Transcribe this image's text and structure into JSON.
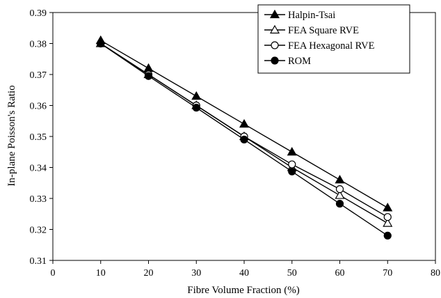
{
  "chart_data": {
    "type": "line",
    "xlabel": "Fibre Volume Fraction (%)",
    "ylabel": "In-plane Poisson's Ratio",
    "xlim": [
      0,
      80
    ],
    "ylim": [
      0.31,
      0.39
    ],
    "xticks": [
      0,
      10,
      20,
      30,
      40,
      50,
      60,
      70,
      80
    ],
    "yticks": [
      0.31,
      0.32,
      0.33,
      0.34,
      0.35,
      0.36,
      0.37,
      0.38,
      0.39
    ],
    "grid": false,
    "legend_position": "top-right",
    "x": [
      10,
      20,
      30,
      40,
      50,
      60,
      70
    ],
    "series": [
      {
        "name": "Halpin-Tsai",
        "marker": "filled-triangle",
        "values": [
          0.381,
          0.372,
          0.363,
          0.354,
          0.345,
          0.336,
          0.327
        ]
      },
      {
        "name": "FEA Square RVE",
        "marker": "open-triangle",
        "values": [
          0.38,
          0.37,
          0.36,
          0.35,
          0.34,
          0.331,
          0.322
        ]
      },
      {
        "name": "FEA Hexagonal RVE",
        "marker": "open-circle",
        "values": [
          0.38,
          0.37,
          0.36,
          0.35,
          0.341,
          0.333,
          0.324
        ]
      },
      {
        "name": "ROM",
        "marker": "filled-circle",
        "values": [
          0.38,
          0.3695,
          0.3593,
          0.349,
          0.3387,
          0.3283,
          0.318
        ]
      }
    ],
    "colors": {
      "line": "#000000",
      "axis": "#000000",
      "open_fill": "#ffffff"
    }
  }
}
